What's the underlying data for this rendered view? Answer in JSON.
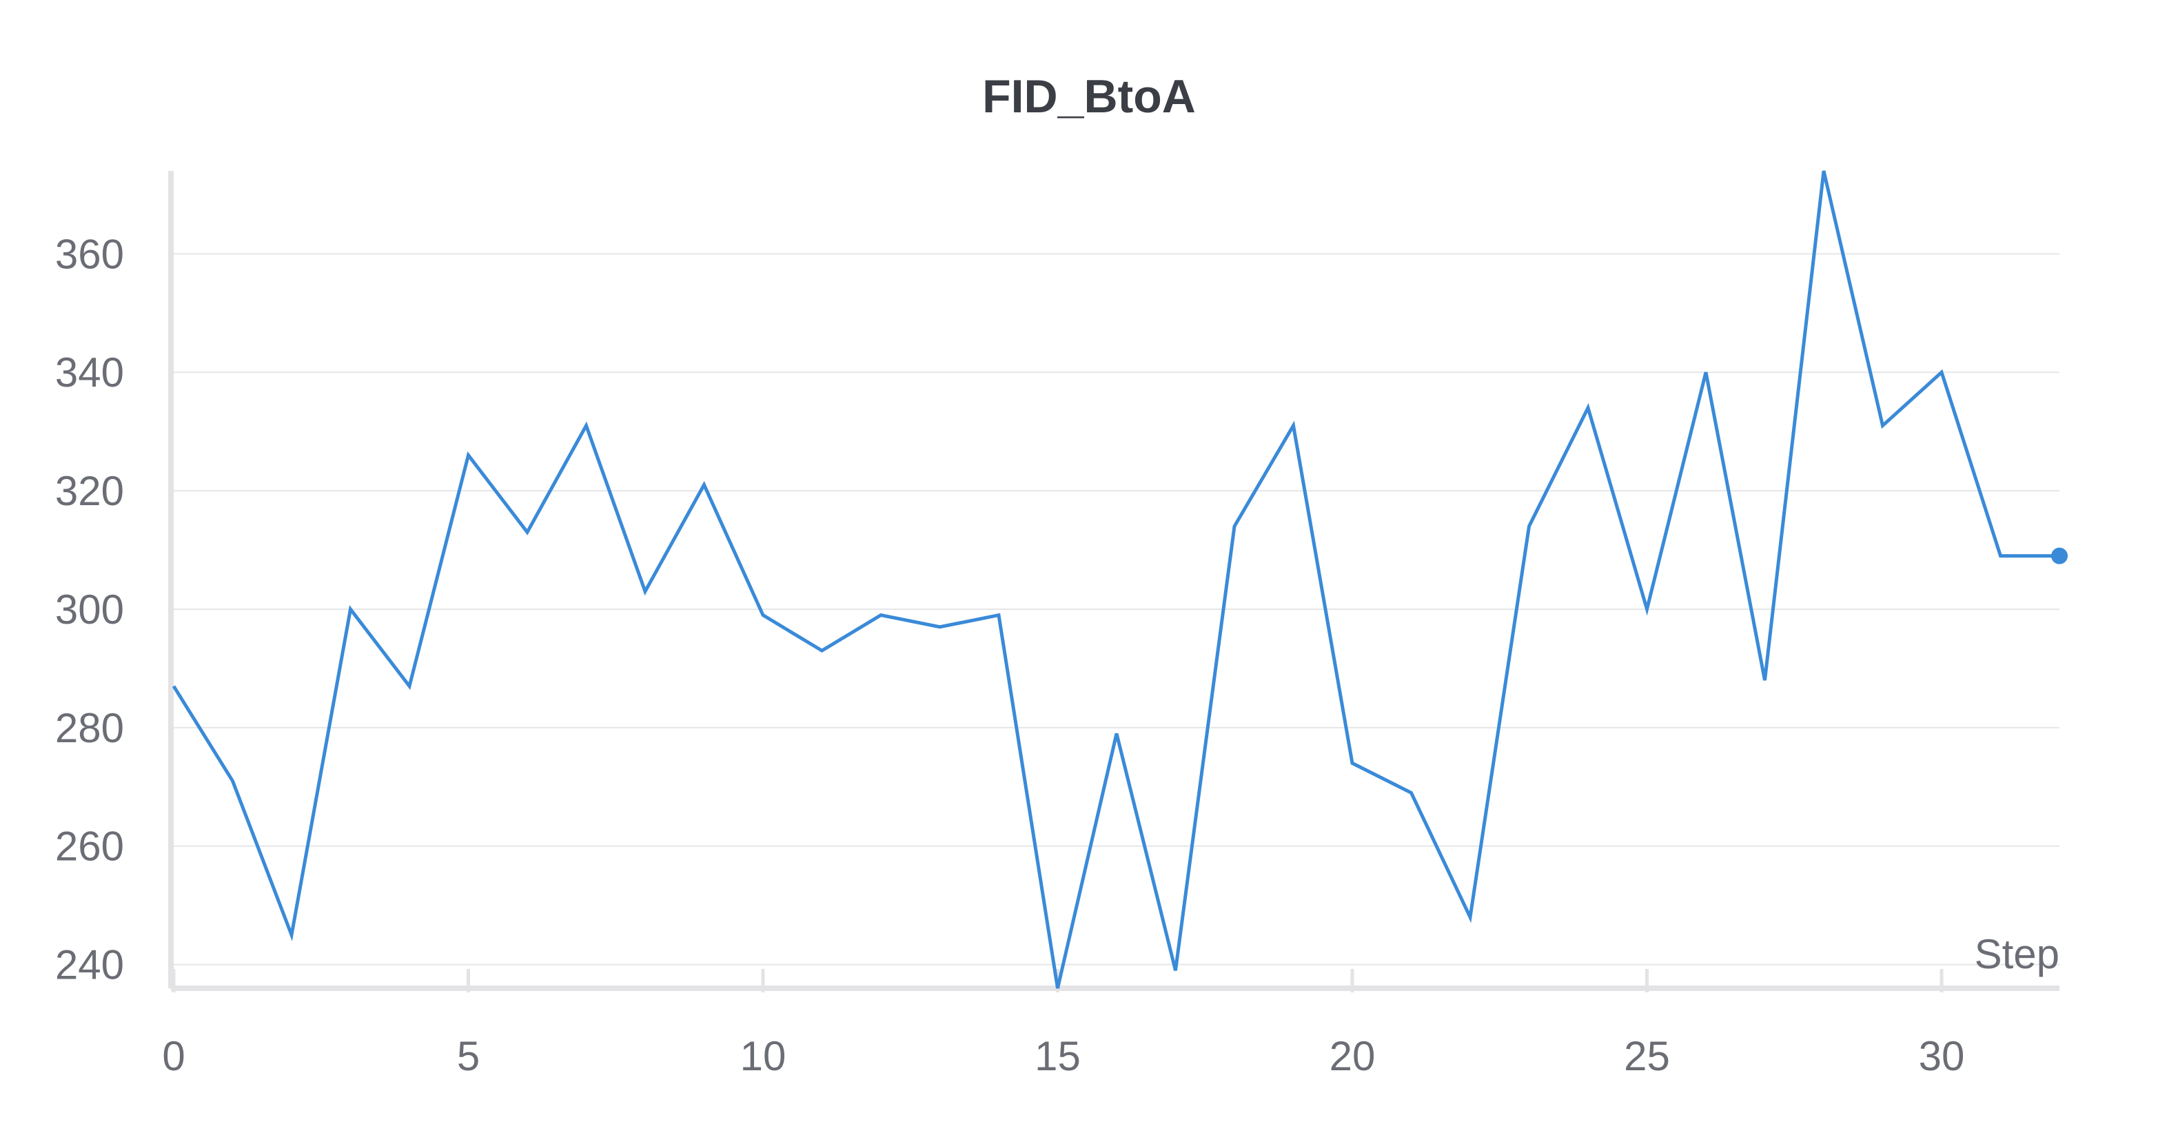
{
  "chart_data": {
    "type": "line",
    "title": "FID_BtoA",
    "xlabel": "Step",
    "ylabel": "",
    "xlim": [
      0,
      32
    ],
    "ylim": [
      236,
      374
    ],
    "xticks": [
      0,
      5,
      10,
      15,
      20,
      25,
      30
    ],
    "yticks": [
      240,
      260,
      280,
      300,
      320,
      340,
      360
    ],
    "grid": true,
    "series": [
      {
        "color": "#3a8ad8",
        "x": [
          0,
          1,
          2,
          3,
          4,
          5,
          6,
          7,
          8,
          9,
          10,
          11,
          12,
          13,
          14,
          15,
          16,
          17,
          18,
          19,
          20,
          21,
          22,
          23,
          24,
          25,
          26,
          27,
          28,
          29,
          30,
          31,
          32
        ],
        "y": [
          287,
          271,
          245,
          300,
          287,
          326,
          313,
          331,
          303,
          321,
          299,
          293,
          299,
          297,
          299,
          236,
          279,
          239,
          314,
          331,
          274,
          269,
          248,
          314,
          334,
          300,
          340,
          288,
          374,
          331,
          340,
          309,
          309
        ]
      }
    ]
  }
}
